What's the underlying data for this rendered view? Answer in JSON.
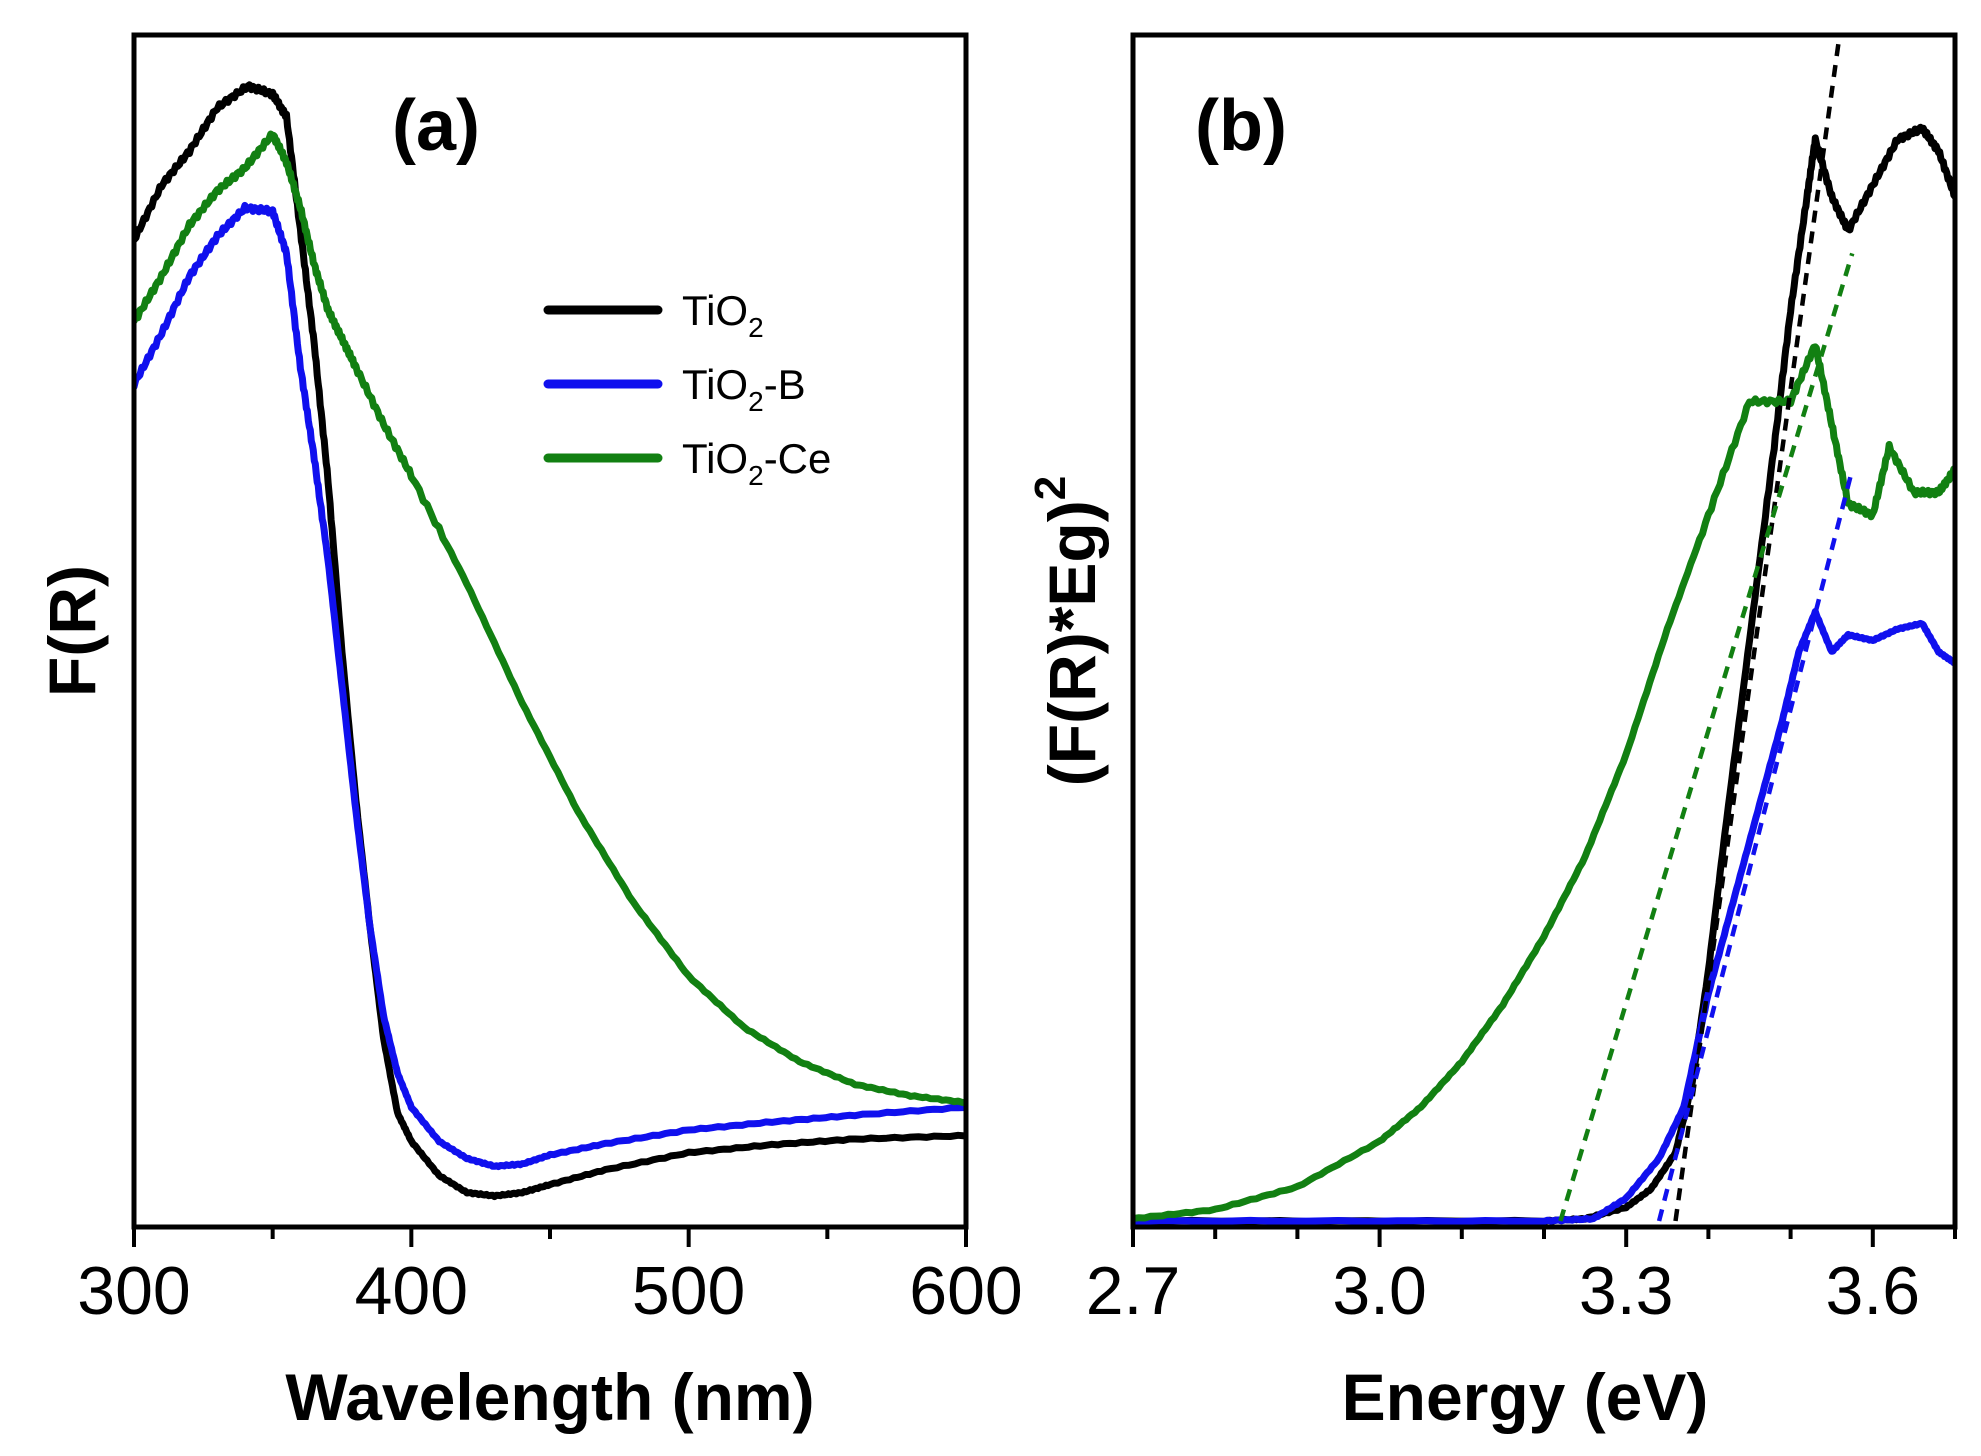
{
  "colors": {
    "TiO2": "#000000",
    "TiO2-B": "#1010ee",
    "TiO2-Ce": "#128012"
  },
  "legend": [
    {
      "base": "TiO",
      "sub": "2",
      "suffix": "",
      "key": "TiO2"
    },
    {
      "base": "TiO",
      "sub": "2",
      "suffix": "-B",
      "key": "TiO2-B"
    },
    {
      "base": "TiO",
      "sub": "2",
      "suffix": "-Ce",
      "key": "TiO2-Ce"
    }
  ],
  "chart_data": [
    {
      "panel": "(a)",
      "type": "line",
      "xlabel": "Wavelength (nm)",
      "ylabel": "F(R)",
      "xlim": [
        300,
        600
      ],
      "ylim": [
        0,
        1
      ],
      "xticks": [
        300,
        400,
        500,
        600
      ],
      "xtick_labels": [
        "300",
        "400",
        "500",
        "600"
      ],
      "y_ticks_shown": false,
      "series": [
        {
          "name": "TiO2",
          "x": [
            300,
            310,
            320,
            330,
            341,
            350,
            355,
            360,
            365,
            370,
            375,
            380,
            385,
            390,
            395,
            400,
            410,
            420,
            430,
            440,
            450,
            470,
            500,
            530,
            560,
            600
          ],
          "y": [
            0.862,
            0.91,
            0.94,
            0.978,
            0.997,
            0.99,
            0.97,
            0.87,
            0.77,
            0.65,
            0.5,
            0.37,
            0.26,
            0.16,
            0.095,
            0.07,
            0.04,
            0.025,
            0.022,
            0.025,
            0.032,
            0.045,
            0.06,
            0.067,
            0.072,
            0.075
          ]
        },
        {
          "name": "TiO2-B",
          "x": [
            300,
            310,
            320,
            330,
            340,
            350,
            355,
            360,
            365,
            370,
            375,
            380,
            385,
            390,
            395,
            400,
            410,
            420,
            430,
            440,
            450,
            470,
            500,
            530,
            560,
            600
          ],
          "y": [
            0.735,
            0.78,
            0.83,
            0.865,
            0.89,
            0.887,
            0.85,
            0.75,
            0.67,
            0.58,
            0.47,
            0.36,
            0.26,
            0.18,
            0.13,
            0.1,
            0.07,
            0.055,
            0.048,
            0.05,
            0.058,
            0.068,
            0.08,
            0.087,
            0.093,
            0.1
          ]
        },
        {
          "name": "TiO2-Ce",
          "x": [
            300,
            310,
            320,
            330,
            340,
            350,
            355,
            360,
            365,
            370,
            375,
            380,
            390,
            400,
            420,
            440,
            460,
            480,
            500,
            520,
            540,
            560,
            580,
            600
          ],
          "y": [
            0.79,
            0.83,
            0.875,
            0.905,
            0.925,
            0.955,
            0.93,
            0.89,
            0.84,
            0.8,
            0.775,
            0.75,
            0.7,
            0.655,
            0.56,
            0.455,
            0.36,
            0.28,
            0.215,
            0.17,
            0.14,
            0.12,
            0.11,
            0.104
          ]
        }
      ]
    },
    {
      "panel": "(b)",
      "type": "line",
      "xlabel": "Energy (eV)",
      "ylabel": "(F(R)*Eg)",
      "ylabel_superscript": "2",
      "xlim": [
        2.7,
        3.7
      ],
      "ylim": [
        0,
        1
      ],
      "xticks": [
        2.7,
        3.0,
        3.3,
        3.6
      ],
      "xtick_labels": [
        "2.7",
        "3.0",
        "3.3",
        "3.6"
      ],
      "y_ticks_shown": false,
      "series": [
        {
          "name": "TiO2",
          "x": [
            2.7,
            3.2,
            3.25,
            3.3,
            3.33,
            3.36,
            3.38,
            3.4,
            3.42,
            3.45,
            3.48,
            3.5,
            3.52,
            3.53,
            3.55,
            3.57,
            3.6,
            3.63,
            3.66,
            3.68,
            3.7
          ],
          "y": [
            0,
            0,
            0.002,
            0.012,
            0.028,
            0.06,
            0.12,
            0.22,
            0.34,
            0.51,
            0.68,
            0.8,
            0.9,
            0.95,
            0.9,
            0.87,
            0.91,
            0.95,
            0.96,
            0.94,
            0.9
          ]
        },
        {
          "name": "TiO2-B",
          "x": [
            2.7,
            3.2,
            3.26,
            3.3,
            3.34,
            3.37,
            3.4,
            3.43,
            3.46,
            3.49,
            3.51,
            3.53,
            3.55,
            3.57,
            3.6,
            3.63,
            3.66,
            3.68,
            3.7
          ],
          "y": [
            0,
            0,
            0.002,
            0.02,
            0.055,
            0.1,
            0.2,
            0.28,
            0.36,
            0.44,
            0.5,
            0.535,
            0.5,
            0.515,
            0.51,
            0.52,
            0.525,
            0.5,
            0.49
          ]
        },
        {
          "name": "TiO2-Ce",
          "x": [
            2.7,
            2.8,
            2.9,
            3.0,
            3.05,
            3.1,
            3.15,
            3.2,
            3.25,
            3.3,
            3.35,
            3.4,
            3.45,
            3.5,
            3.53,
            3.55,
            3.57,
            3.6,
            3.62,
            3.65,
            3.68,
            3.7
          ],
          "y": [
            0.002,
            0.01,
            0.03,
            0.07,
            0.1,
            0.14,
            0.19,
            0.25,
            0.32,
            0.41,
            0.52,
            0.62,
            0.72,
            0.72,
            0.77,
            0.7,
            0.63,
            0.62,
            0.68,
            0.64,
            0.64,
            0.66
          ]
        }
      ],
      "fits": [
        {
          "name": "TiO2",
          "x": [
            3.36,
            3.565
          ],
          "y": [
            0,
            1.07
          ]
        },
        {
          "name": "TiO2-B",
          "x": [
            3.34,
            3.575
          ],
          "y": [
            0,
            0.66
          ]
        },
        {
          "name": "TiO2-Ce",
          "x": [
            3.22,
            3.575
          ],
          "y": [
            0,
            0.85
          ]
        }
      ]
    }
  ]
}
